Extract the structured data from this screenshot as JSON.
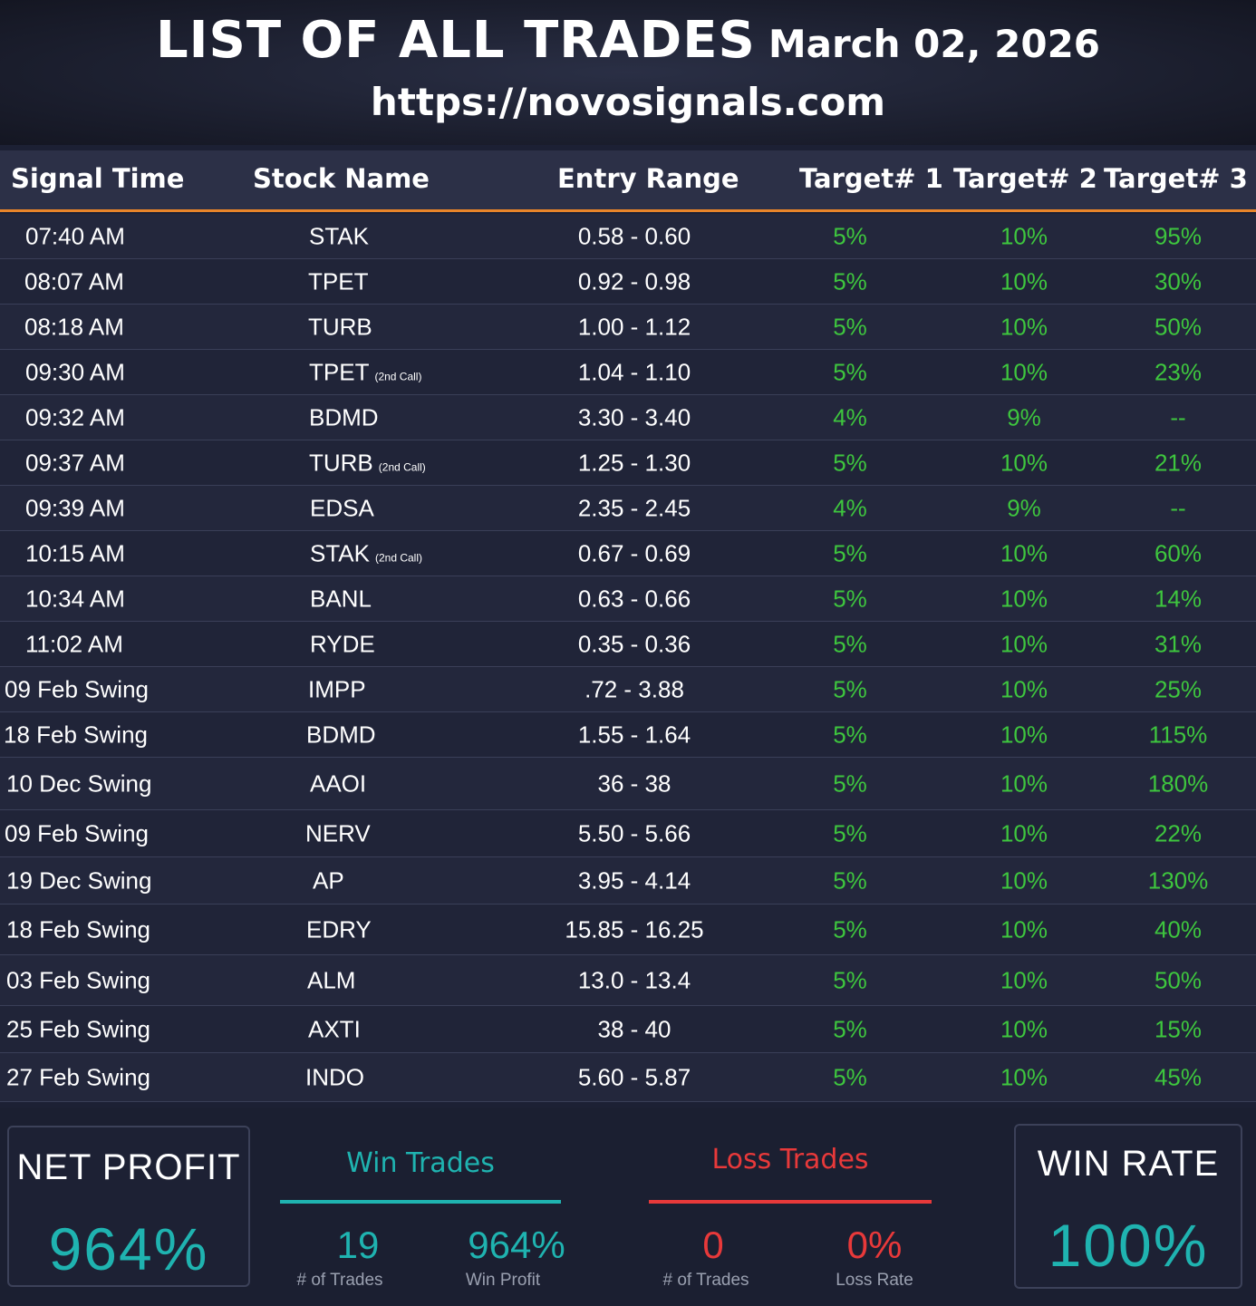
{
  "header": {
    "title": "LIST OF ALL TRADES",
    "date": "March 02, 2026",
    "url": "https://novosignals.com"
  },
  "columns": {
    "signal_time": "Signal Time",
    "stock_name": "Stock Name",
    "entry_range": "Entry Range",
    "target1": "Target# 1",
    "target2": "Target# 2",
    "target3": "Target# 3"
  },
  "trades": [
    {
      "time": "07:40 AM",
      "stock": "STAK",
      "note": "",
      "entry": "0.58 - 0.60",
      "t1": "5%",
      "t2": "10%",
      "t3": "95%"
    },
    {
      "time": "08:07 AM",
      "stock": "TPET",
      "note": "",
      "entry": "0.92 - 0.98",
      "t1": "5%",
      "t2": "10%",
      "t3": "30%"
    },
    {
      "time": "08:18 AM",
      "stock": "TURB",
      "note": "",
      "entry": "1.00 - 1.12",
      "t1": "5%",
      "t2": "10%",
      "t3": "50%"
    },
    {
      "time": "09:30 AM",
      "stock": "TPET",
      "note": "(2nd Call)",
      "entry": "1.04 - 1.10",
      "t1": "5%",
      "t2": "10%",
      "t3": "23%"
    },
    {
      "time": "09:32 AM",
      "stock": "BDMD",
      "note": "",
      "entry": "3.30 - 3.40",
      "t1": "4%",
      "t2": "9%",
      "t3": "--"
    },
    {
      "time": "09:37 AM",
      "stock": "TURB",
      "note": "(2nd Call)",
      "entry": "1.25 - 1.30",
      "t1": "5%",
      "t2": "10%",
      "t3": "21%"
    },
    {
      "time": "09:39 AM",
      "stock": "EDSA",
      "note": "",
      "entry": "2.35 - 2.45",
      "t1": "4%",
      "t2": "9%",
      "t3": "--"
    },
    {
      "time": "10:15 AM",
      "stock": "STAK",
      "note": "(2nd Call)",
      "entry": "0.67 - 0.69",
      "t1": "5%",
      "t2": "10%",
      "t3": "60%"
    },
    {
      "time": "10:34 AM",
      "stock": "BANL",
      "note": "",
      "entry": "0.63 - 0.66",
      "t1": "5%",
      "t2": "10%",
      "t3": "14%"
    },
    {
      "time": "11:02 AM",
      "stock": "RYDE",
      "note": "",
      "entry": "0.35 - 0.36",
      "t1": "5%",
      "t2": "10%",
      "t3": "31%"
    },
    {
      "time": "09 Feb Swing",
      "stock": "IMPP",
      "note": "",
      "entry": ".72 - 3.88",
      "t1": "5%",
      "t2": "10%",
      "t3": "25%"
    },
    {
      "time": "18 Feb Swing",
      "stock": "BDMD",
      "note": "",
      "entry": "1.55 - 1.64",
      "t1": "5%",
      "t2": "10%",
      "t3": "115%"
    },
    {
      "time": "10 Dec Swing",
      "stock": "AAOI",
      "note": "",
      "entry": "36 - 38",
      "t1": "5%",
      "t2": "10%",
      "t3": "180%"
    },
    {
      "time": "09 Feb Swing",
      "stock": "NERV",
      "note": "",
      "entry": "5.50 - 5.66",
      "t1": "5%",
      "t2": "10%",
      "t3": "22%"
    },
    {
      "time": "19 Dec Swing",
      "stock": "AP",
      "note": "",
      "entry": "3.95 - 4.14",
      "t1": "5%",
      "t2": "10%",
      "t3": "130%"
    },
    {
      "time": "18 Feb Swing",
      "stock": "EDRY",
      "note": "",
      "entry": "15.85 - 16.25",
      "t1": "5%",
      "t2": "10%",
      "t3": "40%"
    },
    {
      "time": "03 Feb Swing",
      "stock": "ALM",
      "note": "",
      "entry": "13.0 - 13.4",
      "t1": "5%",
      "t2": "10%",
      "t3": "50%"
    },
    {
      "time": "25 Feb Swing",
      "stock": "AXTI",
      "note": "",
      "entry": "38 - 40",
      "t1": "5%",
      "t2": "10%",
      "t3": "15%"
    },
    {
      "time": "27 Feb Swing",
      "stock": "INDO",
      "note": "",
      "entry": "5.60 - 5.87",
      "t1": "5%",
      "t2": "10%",
      "t3": "45%"
    }
  ],
  "summary": {
    "net_profit_label": "NET PROFIT",
    "net_profit_value": "964%",
    "win_title": "Win Trades",
    "win_count": "19",
    "win_count_label": "# of Trades",
    "win_profit": "964%",
    "win_profit_label": "Win Profit",
    "loss_title": "Loss Trades",
    "loss_count": "0",
    "loss_count_label": "# of Trades",
    "loss_rate": "0%",
    "loss_rate_label": "Loss Rate",
    "win_rate_label": "WIN RATE",
    "win_rate_value": "100%"
  },
  "colors": {
    "accent_orange": "#e8852a",
    "teal": "#1fb3b0",
    "green": "#3ec63e",
    "red": "#e8393a",
    "background": "#1c2034"
  }
}
